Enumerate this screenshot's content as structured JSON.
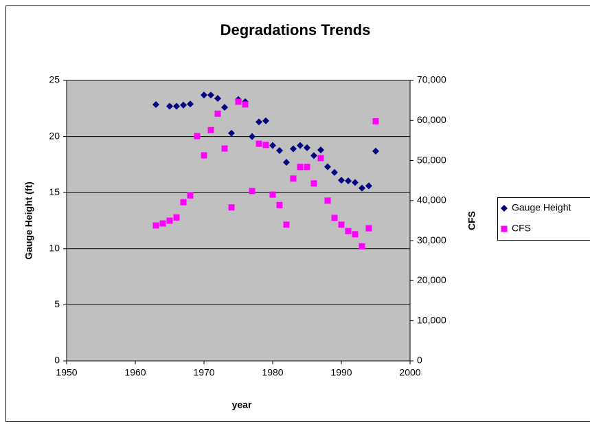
{
  "chart_data": {
    "type": "scatter",
    "title": "Degradations Trends",
    "xlabel": "year",
    "ylabel": "Gauge Height (ft)",
    "y2label": "CFS",
    "xlim": [
      1950,
      2000
    ],
    "xticks": [
      1950,
      1960,
      1970,
      1980,
      1990,
      2000
    ],
    "ylim": [
      0,
      25
    ],
    "yticks": [
      0,
      5,
      10,
      15,
      20,
      25
    ],
    "y2lim": [
      0,
      70000
    ],
    "y2ticks": [
      0,
      {
        "value": 10000,
        "label": "10,000"
      },
      {
        "value": 20000,
        "label": "20,000"
      },
      {
        "value": 30000,
        "label": "30,000"
      },
      {
        "value": 40000,
        "label": "40,000"
      },
      {
        "value": 50000,
        "label": "50,000"
      },
      {
        "value": 60000,
        "label": "60,000"
      },
      {
        "value": 70000,
        "label": "70,000"
      }
    ],
    "grid": true,
    "legend": "right",
    "series": [
      {
        "name": "Gauge Height",
        "color": "#000080",
        "marker": "diamond",
        "x": [
          1963,
          1965,
          1966,
          1967,
          1968,
          1970,
          1971,
          1972,
          1973,
          1974,
          1975,
          1976,
          1977,
          1978,
          1979,
          1980,
          1981,
          1982,
          1983,
          1984,
          1985,
          1986,
          1987,
          1988,
          1989,
          1990,
          1991,
          1992,
          1993,
          1994,
          1995
        ],
        "values": [
          22.85,
          22.7,
          22.7,
          22.8,
          22.9,
          23.7,
          23.7,
          23.4,
          22.6,
          20.3,
          23.3,
          23.1,
          20.0,
          21.3,
          21.4,
          19.2,
          18.75,
          17.7,
          18.9,
          19.2,
          19.0,
          18.3,
          18.8,
          17.3,
          16.8,
          16.1,
          16.05,
          15.9,
          15.4,
          15.6,
          18.7
        ]
      },
      {
        "name": "CFS",
        "color": "#ff00ff",
        "marker": "square",
        "axis": "y2",
        "x": [
          1963,
          1964,
          1965,
          1966,
          1967,
          1968,
          1969,
          1970,
          1971,
          1972,
          1973,
          1974,
          1975,
          1976,
          1977,
          1978,
          1979,
          1980,
          1981,
          1982,
          1983,
          1984,
          1985,
          1986,
          1987,
          1988,
          1989,
          1990,
          1991,
          1992,
          1993,
          1994,
          1995
        ],
        "values": [
          33800,
          34300,
          35000,
          35800,
          39600,
          41300,
          56100,
          51300,
          57600,
          61700,
          53000,
          38300,
          64700,
          64000,
          42400,
          54200,
          53900,
          41500,
          38900,
          34000,
          45500,
          48400,
          48400,
          44300,
          50600,
          40000,
          35700,
          34000,
          32400,
          31600,
          28600,
          33100,
          59800
        ]
      }
    ]
  }
}
